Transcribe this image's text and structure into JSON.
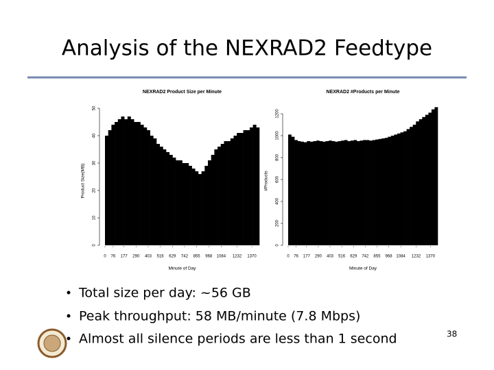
{
  "title": "Analysis of the NEXRAD2 Feedtype",
  "bullets": [
    "Total size per day: ~56 GB",
    "Peak throughput: 58 MB/minute (7.8 Mbps)",
    "Almost all silence periods are less than 1 second"
  ],
  "page_number": "38",
  "chart_data": [
    {
      "type": "histogram",
      "title": "NEXRAD2 Product Size per Minute",
      "x_label": "Minute of Day",
      "y_label": "Product Size(MB)",
      "color": "#000000",
      "bins": [
        0,
        30,
        60,
        90,
        120,
        150,
        180,
        210,
        240,
        270,
        300,
        330,
        360,
        390,
        420,
        450,
        480,
        510,
        540,
        570,
        600,
        630,
        660,
        690,
        720,
        750,
        780,
        810,
        840,
        870,
        900,
        930,
        960,
        990,
        1020,
        1050,
        1080,
        1110,
        1140,
        1170,
        1200,
        1230,
        1260,
        1290,
        1320,
        1350,
        1380,
        1410,
        1440
      ],
      "values": [
        40,
        42,
        44,
        45,
        46,
        47,
        46,
        47,
        46,
        45,
        45,
        44,
        43,
        42,
        40,
        39,
        37,
        36,
        35,
        34,
        33,
        32,
        31,
        31,
        30,
        30,
        29,
        28,
        27,
        26,
        27,
        29,
        31,
        33,
        35,
        36,
        37,
        38,
        38,
        39,
        40,
        41,
        41,
        42,
        42,
        43,
        44,
        43
      ],
      "xlim": [
        0,
        1440
      ],
      "xticks": [
        0,
        76,
        177,
        290,
        403,
        516,
        629,
        742,
        855,
        968,
        1084,
        1232,
        1370
      ],
      "ylim": [
        0,
        52
      ],
      "yticks": [
        0,
        10,
        20,
        30,
        40,
        50
      ]
    },
    {
      "type": "histogram",
      "title": "NEXRAD2 #Products per Minute",
      "x_label": "Minute of Day",
      "y_label": "#Products",
      "color": "#000000",
      "bins": [
        0,
        30,
        60,
        90,
        120,
        150,
        180,
        210,
        240,
        270,
        300,
        330,
        360,
        390,
        420,
        450,
        480,
        510,
        540,
        570,
        600,
        630,
        660,
        690,
        720,
        750,
        780,
        810,
        840,
        870,
        900,
        930,
        960,
        990,
        1020,
        1050,
        1080,
        1110,
        1140,
        1170,
        1200,
        1230,
        1260,
        1290,
        1320,
        1350,
        1380,
        1410,
        1440
      ],
      "values": [
        1010,
        990,
        960,
        950,
        945,
        940,
        950,
        945,
        950,
        955,
        950,
        945,
        950,
        955,
        950,
        945,
        950,
        955,
        960,
        950,
        955,
        960,
        950,
        955,
        960,
        960,
        955,
        960,
        965,
        970,
        975,
        980,
        990,
        1000,
        1010,
        1020,
        1030,
        1040,
        1060,
        1080,
        1100,
        1130,
        1150,
        1170,
        1190,
        1210,
        1240,
        1260
      ],
      "xlim": [
        0,
        1440
      ],
      "xticks": [
        0,
        76,
        177,
        290,
        403,
        516,
        629,
        742,
        855,
        968,
        1084,
        1232,
        1370
      ],
      "ylim": [
        0,
        1300
      ],
      "yticks": [
        0,
        200,
        400,
        600,
        800,
        1000,
        1200
      ]
    }
  ]
}
